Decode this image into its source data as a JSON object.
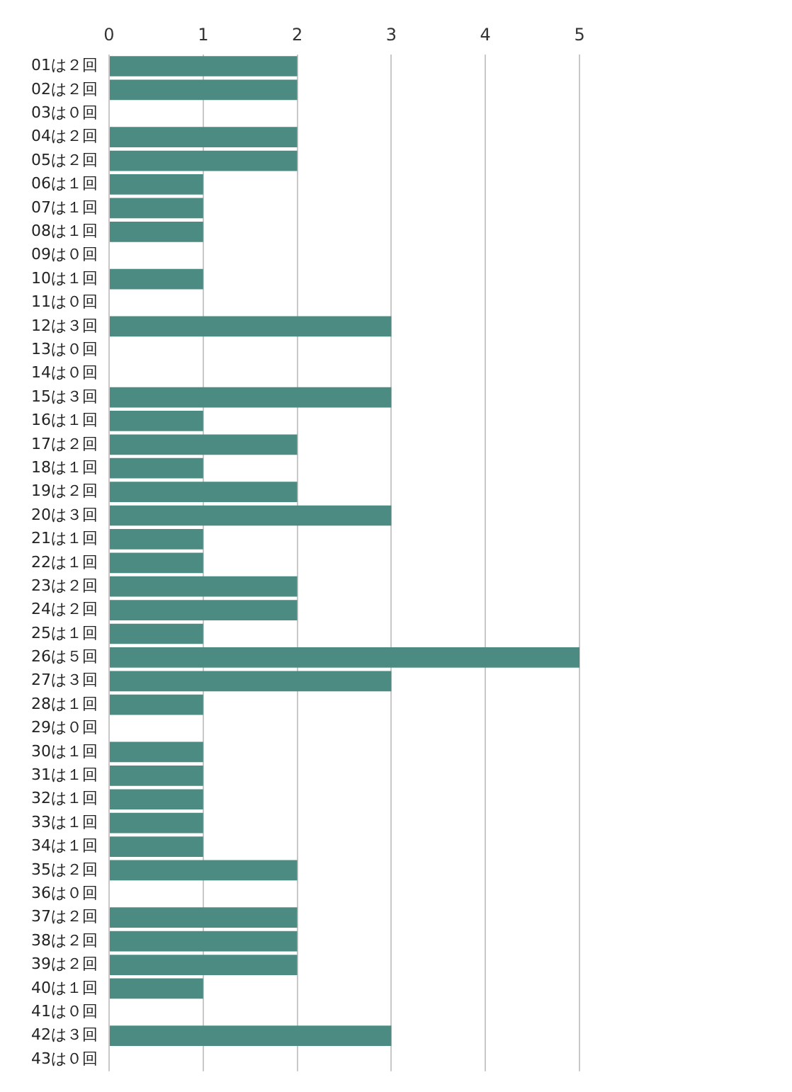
{
  "chart_data": {
    "type": "bar",
    "orientation": "horizontal",
    "categories": [
      "01は２回",
      "02は２回",
      "03は０回",
      "04は２回",
      "05は２回",
      "06は１回",
      "07は１回",
      "08は１回",
      "09は０回",
      "10は１回",
      "11は０回",
      "12は３回",
      "13は０回",
      "14は０回",
      "15は３回",
      "16は１回",
      "17は２回",
      "18は１回",
      "19は２回",
      "20は３回",
      "21は１回",
      "22は１回",
      "23は２回",
      "24は２回",
      "25は１回",
      "26は５回",
      "27は３回",
      "28は１回",
      "29は０回",
      "30は１回",
      "31は１回",
      "32は１回",
      "33は１回",
      "34は１回",
      "35は２回",
      "36は０回",
      "37は２回",
      "38は２回",
      "39は２回",
      "40は１回",
      "41は０回",
      "42は３回",
      "43は０回"
    ],
    "values": [
      2,
      2,
      0,
      2,
      2,
      1,
      1,
      1,
      0,
      1,
      0,
      3,
      0,
      0,
      3,
      1,
      2,
      1,
      2,
      3,
      1,
      1,
      2,
      2,
      1,
      5,
      3,
      1,
      0,
      1,
      1,
      1,
      1,
      1,
      2,
      0,
      2,
      2,
      2,
      1,
      0,
      3,
      0
    ],
    "color": "#4b8b81",
    "xlim": [
      0,
      5
    ],
    "xticks": [
      0,
      1,
      2,
      3,
      4,
      5
    ],
    "grid": "x"
  }
}
